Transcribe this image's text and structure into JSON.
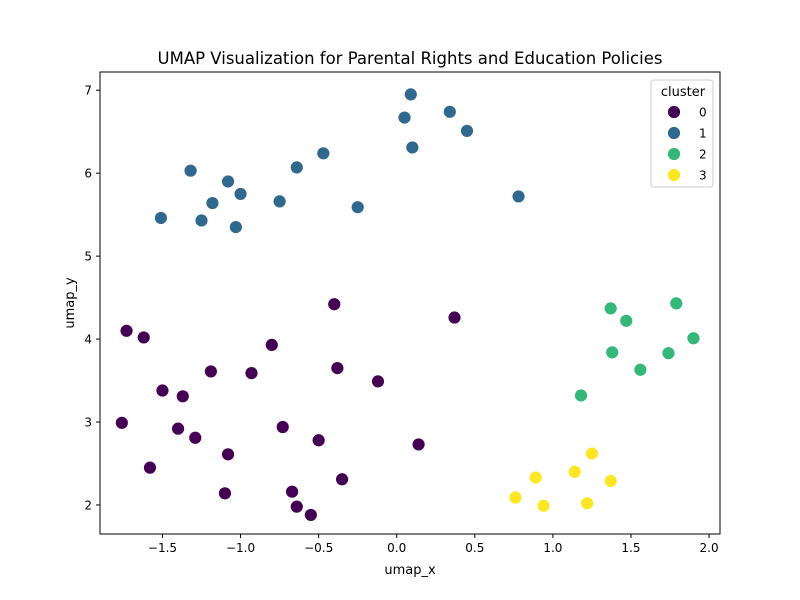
{
  "chart_data": {
    "type": "scatter",
    "title": "UMAP Visualization for Parental Rights and Education Policies",
    "xlabel": "umap_x",
    "ylabel": "umap_y",
    "xlim": [
      -1.9,
      2.07
    ],
    "ylim": [
      1.65,
      7.22
    ],
    "xticks": [
      -1.5,
      -1.0,
      -0.5,
      0.0,
      0.5,
      1.0,
      1.5,
      2.0
    ],
    "xtick_labels": [
      "−1.5",
      "−1.0",
      "−0.5",
      "0.0",
      "0.5",
      "1.0",
      "1.5",
      "2.0"
    ],
    "yticks": [
      2,
      3,
      4,
      5,
      6,
      7
    ],
    "ytick_labels": [
      "2",
      "3",
      "4",
      "5",
      "6",
      "7"
    ],
    "grid": false,
    "legend": {
      "title": "cluster",
      "position": "top-right",
      "entries": [
        "0",
        "1",
        "2",
        "3"
      ]
    },
    "colors": [
      "#440154",
      "#31688e",
      "#35b779",
      "#fde725"
    ],
    "series": [
      {
        "name": "0",
        "points": [
          [
            -1.73,
            4.1
          ],
          [
            -1.62,
            4.02
          ],
          [
            -1.5,
            3.38
          ],
          [
            -1.37,
            3.31
          ],
          [
            -1.76,
            2.99
          ],
          [
            -1.4,
            2.92
          ],
          [
            -1.29,
            2.81
          ],
          [
            -1.58,
            2.45
          ],
          [
            -1.08,
            2.61
          ],
          [
            -1.1,
            2.14
          ],
          [
            -1.19,
            3.61
          ],
          [
            -0.93,
            3.59
          ],
          [
            -0.8,
            3.93
          ],
          [
            -0.73,
            2.94
          ],
          [
            -0.67,
            2.16
          ],
          [
            -0.64,
            1.98
          ],
          [
            -0.55,
            1.88
          ],
          [
            -0.5,
            2.78
          ],
          [
            -0.35,
            2.31
          ],
          [
            -0.38,
            3.65
          ],
          [
            -0.4,
            4.42
          ],
          [
            -0.12,
            3.49
          ],
          [
            0.14,
            2.73
          ],
          [
            0.37,
            4.26
          ]
        ]
      },
      {
        "name": "1",
        "points": [
          [
            -1.51,
            5.46
          ],
          [
            -1.32,
            6.03
          ],
          [
            -1.25,
            5.43
          ],
          [
            -1.18,
            5.64
          ],
          [
            -1.08,
            5.9
          ],
          [
            -1.03,
            5.35
          ],
          [
            -1.0,
            5.75
          ],
          [
            -0.75,
            5.66
          ],
          [
            -0.64,
            6.07
          ],
          [
            -0.47,
            6.24
          ],
          [
            -0.25,
            5.59
          ],
          [
            0.05,
            6.67
          ],
          [
            0.09,
            6.95
          ],
          [
            0.1,
            6.31
          ],
          [
            0.34,
            6.74
          ],
          [
            0.45,
            6.51
          ],
          [
            0.78,
            5.72
          ]
        ]
      },
      {
        "name": "2",
        "points": [
          [
            1.37,
            4.37
          ],
          [
            1.47,
            4.22
          ],
          [
            1.38,
            3.84
          ],
          [
            1.56,
            3.63
          ],
          [
            1.18,
            3.32
          ],
          [
            1.74,
            3.83
          ],
          [
            1.79,
            4.43
          ],
          [
            1.9,
            4.01
          ]
        ]
      },
      {
        "name": "3",
        "points": [
          [
            0.89,
            2.33
          ],
          [
            1.14,
            2.4
          ],
          [
            1.25,
            2.62
          ],
          [
            0.76,
            2.09
          ],
          [
            0.94,
            1.99
          ],
          [
            1.22,
            2.02
          ],
          [
            1.37,
            2.29
          ]
        ]
      }
    ]
  }
}
